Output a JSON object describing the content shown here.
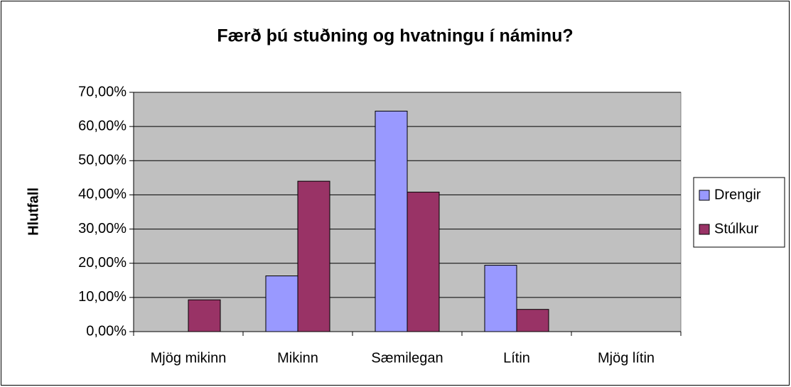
{
  "chart_data": {
    "type": "bar",
    "title": "Færð þú stuðning og hvatningu í náminu?",
    "y_label": "Hlutfall",
    "categories": [
      "Mjög mikinn",
      "Mikinn",
      "Sæmilegan",
      "Lítin",
      "Mjög lítin"
    ],
    "series": [
      {
        "name": "Drengir",
        "color": "#9999ff",
        "values": [
          0,
          16.3,
          64.5,
          19.4,
          0
        ]
      },
      {
        "name": "Stúlkur",
        "color": "#993366",
        "values": [
          9.3,
          44,
          40.8,
          6.5,
          0
        ]
      }
    ],
    "ylim": [
      0,
      70
    ],
    "yticks": [
      {
        "value": 0,
        "label": "0,00%"
      },
      {
        "value": 10,
        "label": "10,00%"
      },
      {
        "value": 20,
        "label": "20,00%"
      },
      {
        "value": 30,
        "label": "30,00%"
      },
      {
        "value": 40,
        "label": "40,00%"
      },
      {
        "value": 50,
        "label": "50,00%"
      },
      {
        "value": 60,
        "label": "60,00%"
      },
      {
        "value": 70,
        "label": "70,00%"
      }
    ],
    "grid": true,
    "legend": "right"
  }
}
